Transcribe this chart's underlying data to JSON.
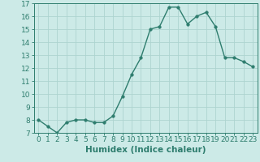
{
  "x": [
    0,
    1,
    2,
    3,
    4,
    5,
    6,
    7,
    8,
    9,
    10,
    11,
    12,
    13,
    14,
    15,
    16,
    17,
    18,
    19,
    20,
    21,
    22,
    23
  ],
  "y": [
    8.0,
    7.5,
    7.0,
    7.8,
    8.0,
    8.0,
    7.8,
    7.8,
    8.3,
    9.8,
    11.5,
    12.8,
    15.0,
    15.2,
    16.7,
    16.7,
    15.4,
    16.0,
    16.3,
    15.2,
    12.8,
    12.8,
    12.5,
    12.1
  ],
  "xlabel": "Humidex (Indice chaleur)",
  "ylim": [
    7,
    17
  ],
  "xlim": [
    -0.5,
    23.5
  ],
  "yticks": [
    7,
    8,
    9,
    10,
    11,
    12,
    13,
    14,
    15,
    16,
    17
  ],
  "xticks": [
    0,
    1,
    2,
    3,
    4,
    5,
    6,
    7,
    8,
    9,
    10,
    11,
    12,
    13,
    14,
    15,
    16,
    17,
    18,
    19,
    20,
    21,
    22,
    23
  ],
  "line_color": "#2e7d6e",
  "marker_size": 2.5,
  "bg_color": "#cceae7",
  "grid_color": "#add4d0",
  "axis_color": "#2e7d6e",
  "tick_color": "#2e7d6e",
  "label_fontsize": 7.5,
  "tick_fontsize": 6.5
}
